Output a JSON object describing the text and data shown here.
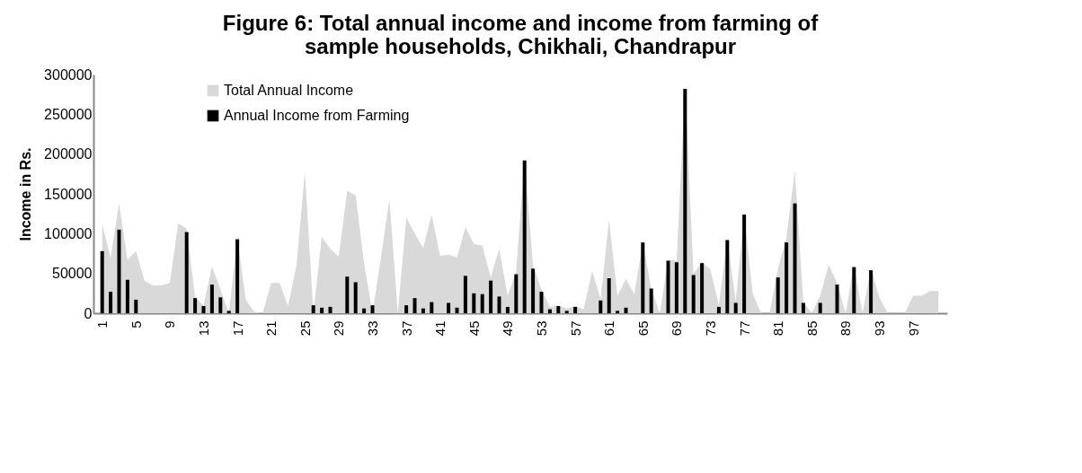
{
  "chart_data": {
    "type": "area",
    "title": "Figure 6: Total annual income and income from farming of sample households, Chikhali, Chandrapur",
    "ylabel": "Income in Rs.",
    "categories": [
      "1",
      null,
      null,
      null,
      "5",
      null,
      null,
      null,
      "9",
      null,
      null,
      null,
      "13",
      null,
      null,
      null,
      "17",
      null,
      null,
      null,
      "21",
      null,
      null,
      null,
      "25",
      null,
      null,
      null,
      "29",
      null,
      null,
      null,
      "33",
      null,
      null,
      null,
      "37",
      null,
      null,
      null,
      "41",
      null,
      null,
      null,
      "45",
      null,
      null,
      null,
      "49",
      null,
      null,
      null,
      "53",
      null,
      null,
      null,
      "57",
      null,
      null,
      null,
      "61",
      null,
      null,
      null,
      "65",
      null,
      null,
      null,
      "69",
      null,
      null,
      null,
      "73",
      null,
      null,
      null,
      "77",
      null,
      null,
      null,
      "81",
      null,
      null,
      null,
      "85",
      null,
      null,
      null,
      "89",
      null,
      null,
      null,
      "93",
      null,
      null,
      null,
      "97",
      null,
      null,
      null
    ],
    "series": [
      {
        "name": "Total Annual Income",
        "color": "#d9d9d9",
        "values": [
          112000,
          70000,
          138000,
          67000,
          78000,
          41000,
          35000,
          35000,
          38000,
          113000,
          106000,
          20000,
          10000,
          59000,
          30000,
          0,
          95000,
          17000,
          2000,
          0,
          38000,
          38000,
          9000,
          60000,
          178000,
          0,
          96000,
          81000,
          71000,
          154000,
          148000,
          63000,
          0,
          70000,
          143000,
          0,
          120000,
          100000,
          82000,
          124000,
          72000,
          74000,
          70000,
          108000,
          87000,
          85000,
          45000,
          81000,
          22000,
          52000,
          195000,
          60000,
          30000,
          8000,
          10000,
          6000,
          9000,
          5000,
          53000,
          18000,
          117000,
          22000,
          43000,
          24000,
          90000,
          31000,
          0,
          67000,
          66000,
          285000,
          50000,
          64000,
          55000,
          10000,
          94000,
          15000,
          125000,
          25000,
          0,
          0,
          56000,
          95000,
          180000,
          14000,
          0,
          22000,
          61000,
          38000,
          0,
          60000,
          0,
          56000,
          20000,
          0,
          0,
          0,
          22000,
          22000,
          28000,
          28000
        ]
      },
      {
        "name": "Annual Income from Farming",
        "type": "bar",
        "color": "#000000",
        "values": [
          78000,
          27000,
          105000,
          42000,
          17000,
          null,
          null,
          null,
          null,
          null,
          102000,
          19000,
          9000,
          36000,
          20000,
          3000,
          93000,
          null,
          null,
          null,
          null,
          null,
          null,
          null,
          null,
          10000,
          7000,
          8000,
          null,
          46000,
          39000,
          6000,
          10000,
          null,
          null,
          null,
          10000,
          19000,
          6000,
          14000,
          null,
          13000,
          7000,
          47000,
          25000,
          24000,
          41000,
          21000,
          8000,
          49000,
          192000,
          56000,
          27000,
          5000,
          9000,
          3000,
          8000,
          null,
          null,
          16000,
          44000,
          3000,
          7000,
          null,
          89000,
          31000,
          null,
          66000,
          64000,
          282000,
          48000,
          63000,
          null,
          8000,
          92000,
          13000,
          124000,
          null,
          null,
          null,
          45000,
          89000,
          138000,
          13000,
          null,
          13000,
          null,
          36000,
          null,
          58000,
          null,
          54000,
          null,
          null,
          null,
          null,
          null,
          null,
          null,
          null
        ]
      }
    ],
    "ylim": [
      0,
      300000
    ],
    "yticks": [
      0,
      50000,
      100000,
      150000,
      200000,
      250000,
      300000
    ],
    "legend": "top left"
  }
}
